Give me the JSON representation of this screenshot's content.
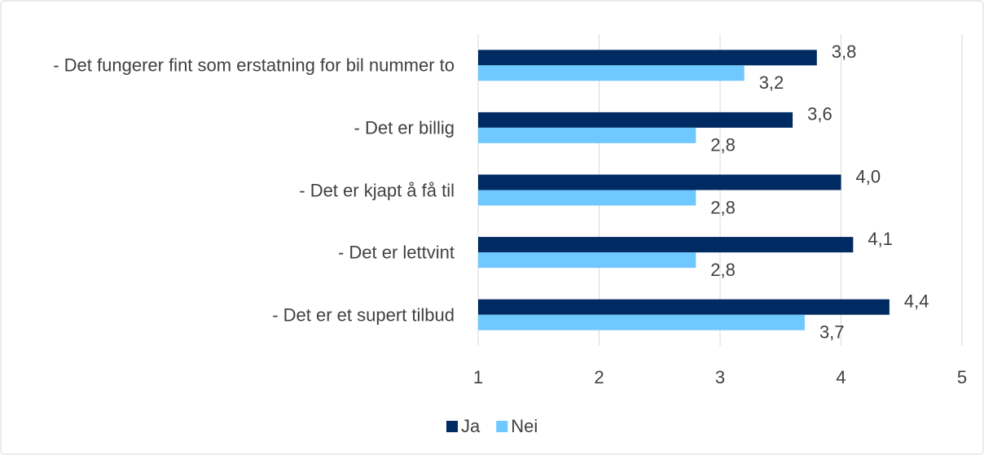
{
  "chart_data": {
    "type": "hbar",
    "categories": [
      "- Det fungerer fint som erstatning for bil nummer to",
      "- Det er billig",
      "- Det er kjapt å få til",
      "- Det er lettvint",
      "- Det er et supert tilbud"
    ],
    "series": [
      {
        "name": "Ja",
        "color": "#002a62",
        "values": [
          3.8,
          3.6,
          4.0,
          4.1,
          4.4
        ],
        "value_labels": [
          "3,8",
          "3,6",
          "4,0",
          "4,1",
          "4,4"
        ]
      },
      {
        "name": "Nei",
        "color": "#6fc8ff",
        "values": [
          3.2,
          2.8,
          2.8,
          2.8,
          3.7
        ],
        "value_labels": [
          "3,2",
          "2,8",
          "2,8",
          "2,8",
          "3,7"
        ]
      }
    ],
    "xlim": [
      1,
      5
    ],
    "xticks": [
      1,
      2,
      3,
      4,
      5
    ],
    "grid": true,
    "legend": "bottom"
  }
}
